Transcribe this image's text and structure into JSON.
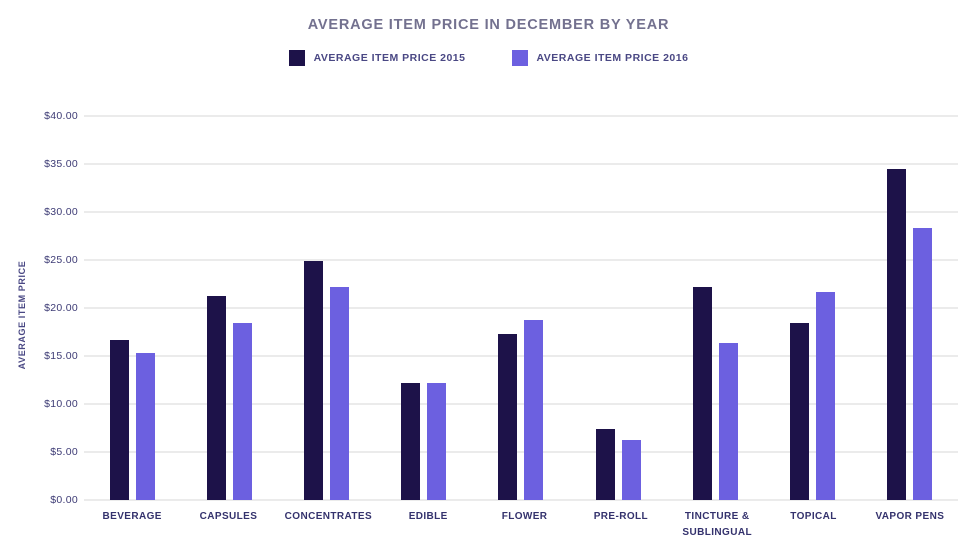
{
  "chart_data": {
    "type": "bar",
    "title": "AVERAGE ITEM PRICE IN DECEMBER BY YEAR",
    "xlabel": "",
    "ylabel": "AVERAGE ITEM PRICE",
    "categories": [
      "BEVERAGE",
      "CAPSULES",
      "CONCENTRATES",
      "EDIBLE",
      "FLOWER",
      "PRE-ROLL",
      "TINCTURE & SUBLINGUAL",
      "TOPICAL",
      "VAPOR PENS"
    ],
    "series": [
      {
        "name": "AVERAGE ITEM PRICE 2015",
        "color": "#1d1249",
        "values": [
          16.7,
          21.2,
          24.9,
          12.2,
          17.3,
          7.4,
          22.2,
          18.4,
          34.5
        ]
      },
      {
        "name": "AVERAGE ITEM PRICE 2016",
        "color": "#6c60e0",
        "values": [
          15.3,
          18.4,
          22.2,
          12.2,
          18.8,
          6.3,
          16.4,
          21.7,
          28.3
        ]
      }
    ],
    "ylim": [
      0,
      40
    ],
    "ytick_step": 5,
    "ytick_prefix": "$",
    "grid": true,
    "legend_position": "top-center"
  },
  "colors": {
    "title_text": "#73718f",
    "legend_text": "#4a4884",
    "axis_tick_text": "#3d3b75",
    "category_text": "#34326d",
    "gridline": "#ebebeb",
    "background": "#ffffff"
  }
}
